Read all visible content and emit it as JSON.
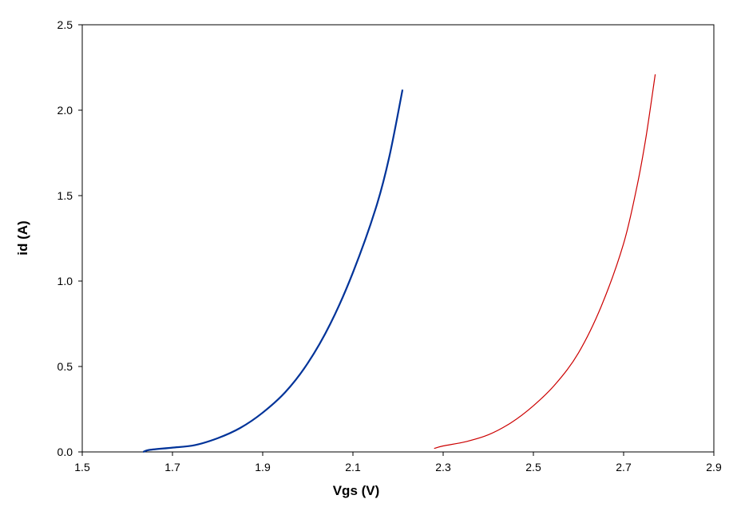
{
  "chart_data": {
    "type": "line",
    "xlabel": "Vgs   (V)",
    "ylabel": "id   (A)",
    "xlim": [
      1.5,
      2.9
    ],
    "ylim": [
      0,
      2.5
    ],
    "x_ticks": [
      "1.5",
      "1.7",
      "1.9",
      "2.1",
      "2.3",
      "2.5",
      "2.7",
      "2.9"
    ],
    "y_ticks": [
      "0.0",
      "0.5",
      "1.0",
      "1.5",
      "2.0",
      "2.5"
    ],
    "grid": false,
    "legend": "none",
    "series": [
      {
        "color": "#003399",
        "points": [
          [
            1.635,
            0.0
          ],
          [
            1.65,
            0.012
          ],
          [
            1.7,
            0.025
          ],
          [
            1.75,
            0.04
          ],
          [
            1.8,
            0.08
          ],
          [
            1.85,
            0.14
          ],
          [
            1.9,
            0.23
          ],
          [
            1.95,
            0.35
          ],
          [
            2.0,
            0.52
          ],
          [
            2.05,
            0.75
          ],
          [
            2.1,
            1.05
          ],
          [
            2.15,
            1.42
          ],
          [
            2.18,
            1.72
          ],
          [
            2.21,
            2.12
          ]
        ]
      },
      {
        "color": "#cc0000",
        "points": [
          [
            2.28,
            0.02
          ],
          [
            2.3,
            0.035
          ],
          [
            2.35,
            0.06
          ],
          [
            2.4,
            0.1
          ],
          [
            2.45,
            0.17
          ],
          [
            2.5,
            0.27
          ],
          [
            2.55,
            0.4
          ],
          [
            2.6,
            0.58
          ],
          [
            2.65,
            0.85
          ],
          [
            2.7,
            1.22
          ],
          [
            2.73,
            1.56
          ],
          [
            2.75,
            1.85
          ],
          [
            2.77,
            2.21
          ]
        ]
      }
    ]
  }
}
